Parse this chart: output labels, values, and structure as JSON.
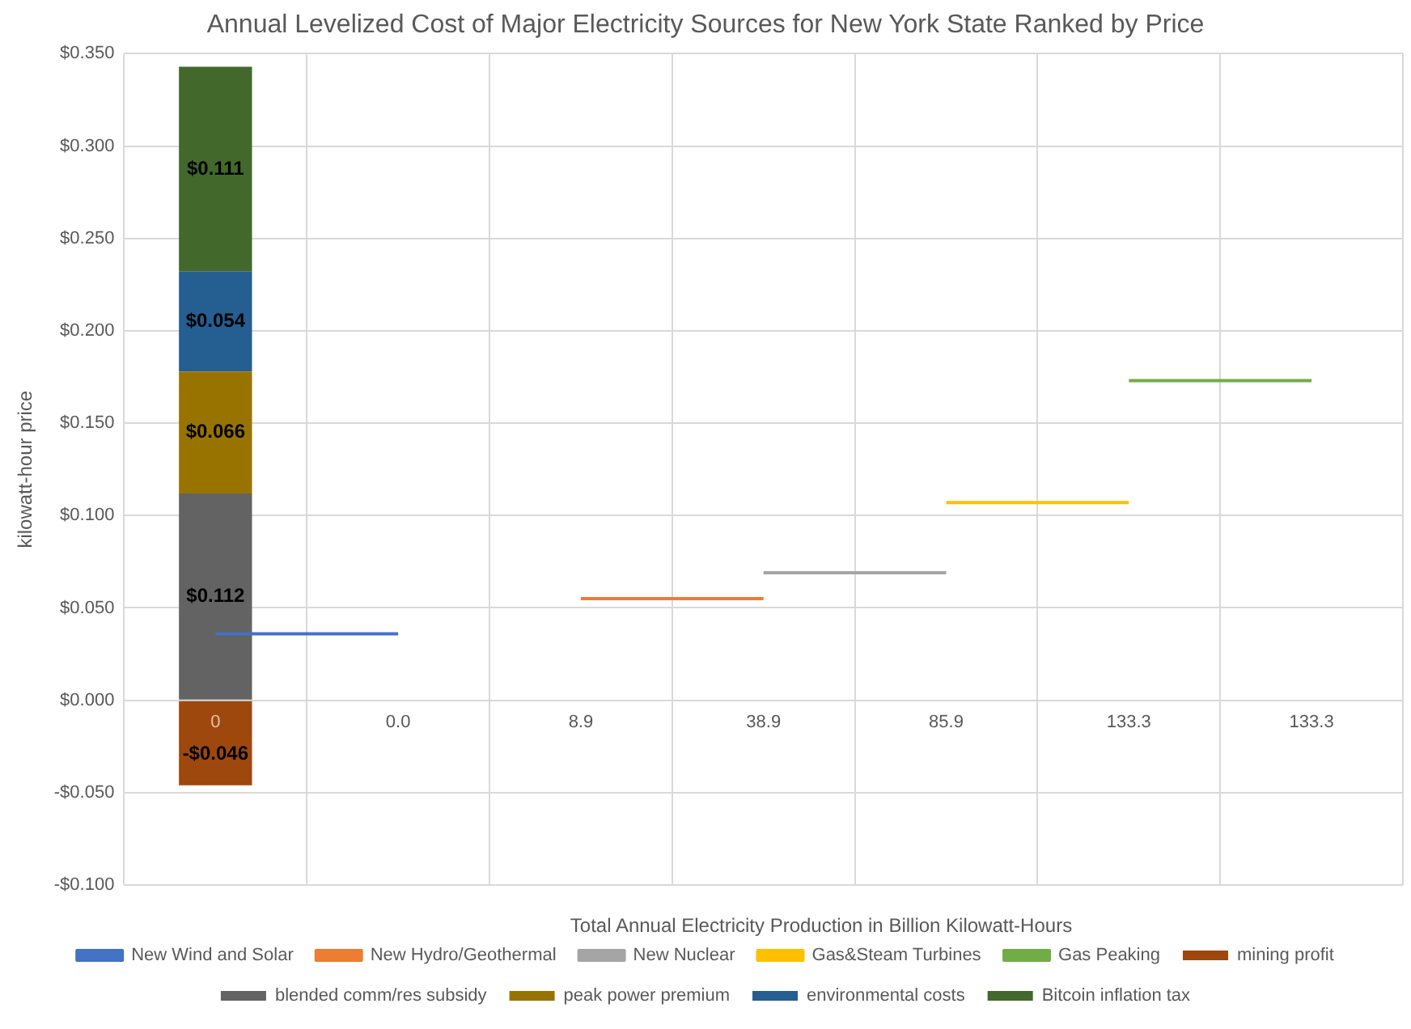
{
  "chart_data": {
    "type": "bar",
    "title": "Annual Levelized Cost of Major Electricity Sources for New York State Ranked by Price",
    "xlabel": "Total Annual Electricity Production in Billion Kilowatt-Hours",
    "ylabel": "kilowatt-hour price",
    "categories": [
      "0",
      "0.0",
      "8.9",
      "38.9",
      "85.9",
      "133.3",
      "133.3"
    ],
    "stacked": true,
    "grid": true,
    "legend": "bottom",
    "ylim": [
      -0.1,
      0.35
    ],
    "yticks": [
      {
        "value": -0.1,
        "label": "-$0.100"
      },
      {
        "value": -0.05,
        "label": "-$0.050"
      },
      {
        "value": 0,
        "label": "$0.000"
      },
      {
        "value": 0.05,
        "label": "$0.050"
      },
      {
        "value": 0.1,
        "label": "$0.100"
      },
      {
        "value": 0.15,
        "label": "$0.150"
      },
      {
        "value": 0.2,
        "label": "$0.200"
      },
      {
        "value": 0.25,
        "label": "$0.250"
      },
      {
        "value": 0.3,
        "label": "$0.300"
      },
      {
        "value": 0.35,
        "label": "$0.350"
      }
    ],
    "series": [
      {
        "name": "mining profit",
        "color": "#9e480e",
        "values": [
          -0.046,
          null,
          null,
          null,
          null,
          null,
          null
        ],
        "value_labels": [
          "-$0.046",
          null,
          null,
          null,
          null,
          null,
          null
        ]
      },
      {
        "name": "blended comm/res subsidy",
        "color": "#636363",
        "values": [
          0.112,
          null,
          null,
          null,
          null,
          null,
          null
        ],
        "value_labels": [
          "$0.112",
          null,
          null,
          null,
          null,
          null,
          null
        ]
      },
      {
        "name": "peak power premium",
        "color": "#997300",
        "values": [
          0.066,
          null,
          null,
          null,
          null,
          null,
          null
        ],
        "value_labels": [
          "$0.066",
          null,
          null,
          null,
          null,
          null,
          null
        ]
      },
      {
        "name": "environmental costs",
        "color": "#255e91",
        "values": [
          0.054,
          null,
          null,
          null,
          null,
          null,
          null
        ],
        "value_labels": [
          "$0.054",
          null,
          null,
          null,
          null,
          null,
          null
        ]
      },
      {
        "name": "Bitcoin inflation tax",
        "color": "#43682b",
        "values": [
          0.111,
          null,
          null,
          null,
          null,
          null,
          null
        ],
        "value_labels": [
          "$0.111",
          null,
          null,
          null,
          null,
          null,
          null
        ]
      },
      {
        "name": "New Wind and Solar",
        "type": "line",
        "color": "#4472c4",
        "values": [
          0.036,
          0.036,
          null,
          null,
          null,
          null,
          null
        ]
      },
      {
        "name": "New Hydro/Geothermal",
        "type": "line",
        "color": "#ed7d31",
        "values": [
          null,
          null,
          0.055,
          0.055,
          null,
          null,
          null
        ]
      },
      {
        "name": "New Nuclear",
        "type": "line",
        "color": "#a5a5a5",
        "values": [
          null,
          null,
          null,
          0.069,
          0.069,
          null,
          null
        ]
      },
      {
        "name": "Gas&Steam Turbines",
        "type": "line",
        "color": "#ffc000",
        "values": [
          null,
          null,
          null,
          null,
          0.107,
          0.107,
          null
        ]
      },
      {
        "name": "Gas Peaking",
        "type": "line",
        "color": "#70ad47",
        "values": [
          null,
          null,
          null,
          null,
          null,
          0.173,
          0.173
        ]
      }
    ]
  }
}
